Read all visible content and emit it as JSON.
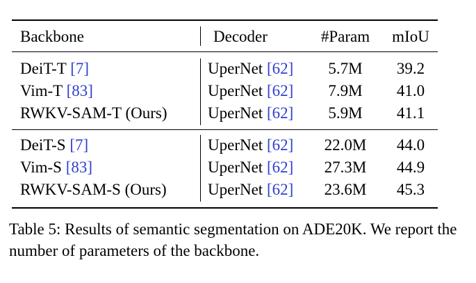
{
  "table": {
    "headers": {
      "backbone": "Backbone",
      "decoder": "Decoder",
      "param": "#Param",
      "miou": "mIoU"
    },
    "groups": [
      {
        "rows": [
          {
            "backbone": "DeiT-T",
            "backbone_ref": "[7]",
            "decoder": "UperNet",
            "decoder_ref": "[62]",
            "param": "5.7M",
            "miou": "39.2"
          },
          {
            "backbone": "Vim-T",
            "backbone_ref": "[83]",
            "decoder": "UperNet",
            "decoder_ref": "[62]",
            "param": "7.9M",
            "miou": "41.0"
          },
          {
            "backbone": "RWKV-SAM-T (Ours)",
            "backbone_ref": "",
            "decoder": "UperNet",
            "decoder_ref": "[62]",
            "param": "5.9M",
            "miou": "41.1"
          }
        ]
      },
      {
        "rows": [
          {
            "backbone": "DeiT-S",
            "backbone_ref": "[7]",
            "decoder": "UperNet",
            "decoder_ref": "[62]",
            "param": "22.0M",
            "miou": "44.0"
          },
          {
            "backbone": "Vim-S",
            "backbone_ref": "[83]",
            "decoder": "UperNet",
            "decoder_ref": "[62]",
            "param": "27.3M",
            "miou": "44.9"
          },
          {
            "backbone": "RWKV-SAM-S (Ours)",
            "backbone_ref": "",
            "decoder": "UperNet",
            "decoder_ref": "[62]",
            "param": "23.6M",
            "miou": "45.3"
          }
        ]
      }
    ]
  },
  "caption": {
    "label": "Table 5:",
    "text": "Results of semantic segmentation on ADE20K. We report the number of parameters of the backbone."
  },
  "colors": {
    "citation": "#2f3fd0"
  }
}
